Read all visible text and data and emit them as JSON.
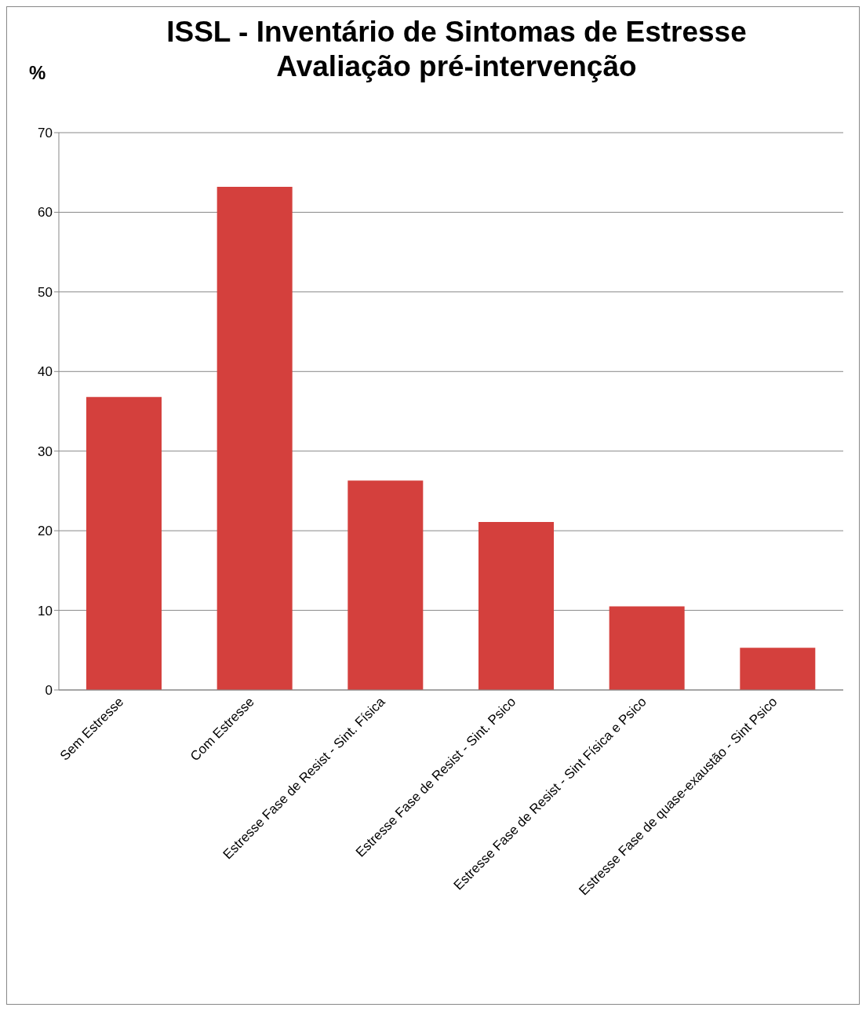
{
  "chart_data": {
    "type": "bar",
    "title": "ISSL - Inventário de Sintomas de Estresse\nAvaliação pré-intervenção",
    "ylabel": "%",
    "categories": [
      "Sem Estresse",
      "Com Estresse",
      "Estresse Fase de Resist - Sint. Física",
      "Estresse Fase de Resist - Sint. Psico",
      "Estresse Fase de Resist - Sint Física e Psico",
      "Estresse Fase de quase-exaustão - Sint Psico"
    ],
    "values": [
      36.8,
      63.2,
      26.3,
      21.1,
      10.5,
      5.3
    ],
    "color": "#d4403d",
    "ylim": [
      0,
      70
    ],
    "yticks": [
      0,
      10,
      20,
      30,
      40,
      50,
      60,
      70
    ],
    "grid": "y",
    "legend": false
  }
}
